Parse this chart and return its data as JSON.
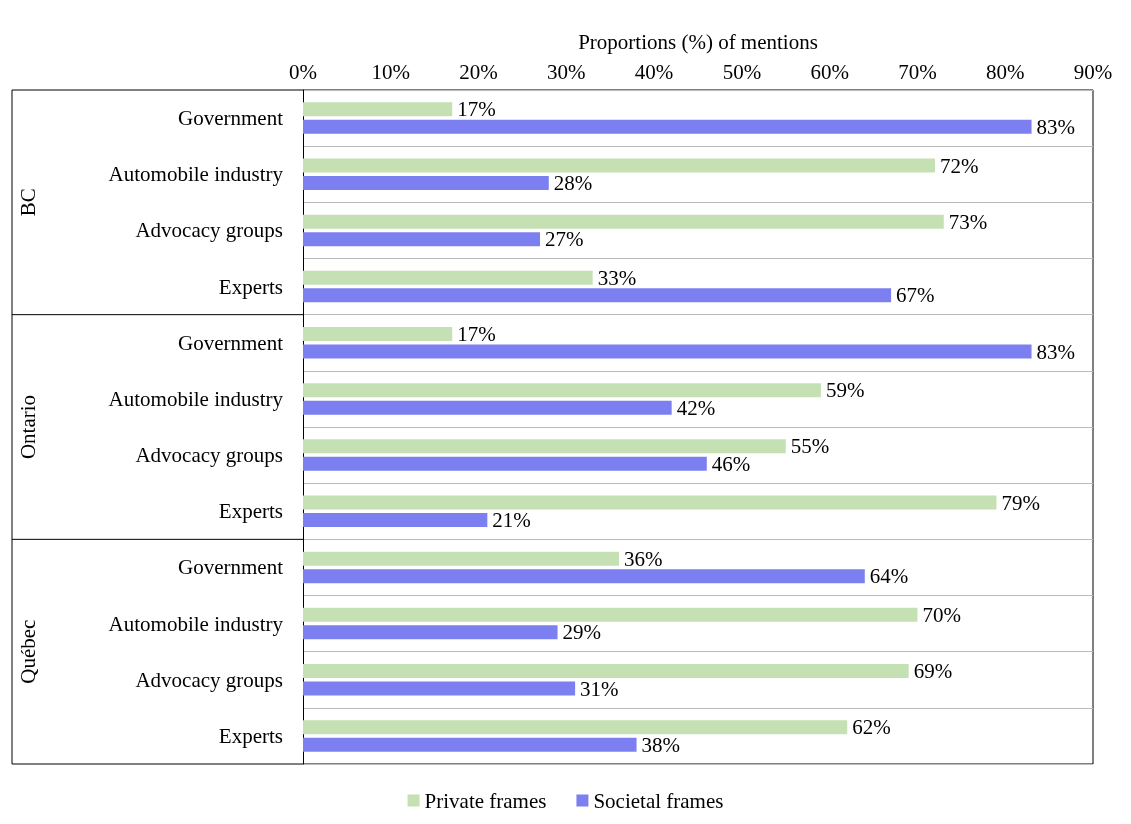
{
  "chart_data": {
    "type": "bar",
    "orientation": "horizontal",
    "xlabel": "Proportions (%) of mentions",
    "categories": [
      "Government",
      "Automobile industry",
      "Advocacy groups",
      "Experts",
      "Government",
      "Automobile industry",
      "Advocacy groups",
      "Experts",
      "Government",
      "Automobile industry",
      "Advocacy groups",
      "Experts"
    ],
    "annotations": [
      "BC",
      "Ontario",
      "Québec"
    ],
    "series": [
      {
        "name": "Private frames",
        "color": "#c5e0b3",
        "values": [
          17,
          72,
          73,
          33,
          17,
          59,
          55,
          79,
          36,
          70,
          69,
          62
        ],
        "value_labels": [
          "17%",
          "72%",
          "73%",
          "33%",
          "17%",
          "59%",
          "55%",
          "79%",
          "36%",
          "70%",
          "69%",
          "62%"
        ]
      },
      {
        "name": "Societal frames",
        "color": "#7b7ff0",
        "values": [
          83,
          28,
          27,
          67,
          83,
          42,
          46,
          21,
          64,
          29,
          31,
          38
        ],
        "value_labels": [
          "83%",
          "28%",
          "27%",
          "67%",
          "83%",
          "42%",
          "46%",
          "21%",
          "64%",
          "29%",
          "31%",
          "38%"
        ]
      }
    ],
    "xlim": [
      0,
      90
    ],
    "xticks": [
      {
        "value": 0,
        "label": "0%"
      },
      {
        "value": 10,
        "label": "10%"
      },
      {
        "value": 20,
        "label": "20%"
      },
      {
        "value": 30,
        "label": "30%"
      },
      {
        "value": 40,
        "label": "40%"
      },
      {
        "value": 50,
        "label": "50%"
      },
      {
        "value": 60,
        "label": "60%"
      },
      {
        "value": 70,
        "label": "70%"
      },
      {
        "value": 80,
        "label": "80%"
      },
      {
        "value": 90,
        "label": "90%"
      }
    ],
    "grid": "y",
    "legend": "bottom"
  }
}
